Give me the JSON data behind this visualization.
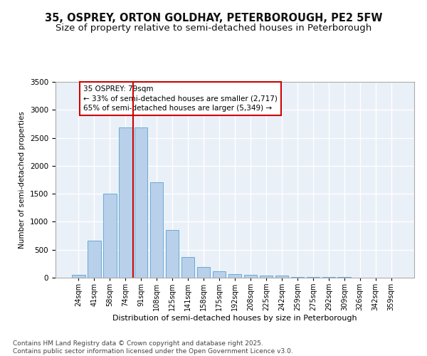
{
  "title1": "35, OSPREY, ORTON GOLDHAY, PETERBOROUGH, PE2 5FW",
  "title2": "Size of property relative to semi-detached houses in Peterborough",
  "xlabel": "Distribution of semi-detached houses by size in Peterborough",
  "ylabel": "Number of semi-detached properties",
  "categories": [
    "24sqm",
    "41sqm",
    "58sqm",
    "74sqm",
    "91sqm",
    "108sqm",
    "125sqm",
    "141sqm",
    "158sqm",
    "175sqm",
    "192sqm",
    "208sqm",
    "225sqm",
    "242sqm",
    "259sqm",
    "275sqm",
    "292sqm",
    "309sqm",
    "326sqm",
    "342sqm",
    "359sqm"
  ],
  "values": [
    55,
    660,
    1500,
    2680,
    2680,
    1700,
    850,
    370,
    185,
    120,
    65,
    50,
    35,
    35,
    10,
    10,
    10,
    10,
    5,
    5,
    5
  ],
  "bar_color": "#b8d0ea",
  "bar_edge_color": "#6aaad4",
  "background_color": "#eaf0f8",
  "grid_color": "#ffffff",
  "annotation_text": "35 OSPREY: 79sqm\n← 33% of semi-detached houses are smaller (2,717)\n65% of semi-detached houses are larger (5,349) →",
  "vline_color": "#cc0000",
  "box_edge_color": "#cc0000",
  "annotation_fontsize": 7.5,
  "ylim": [
    0,
    3500
  ],
  "yticks": [
    0,
    500,
    1000,
    1500,
    2000,
    2500,
    3000,
    3500
  ],
  "footer": "Contains HM Land Registry data © Crown copyright and database right 2025.\nContains public sector information licensed under the Open Government Licence v3.0.",
  "title_fontsize": 10.5,
  "subtitle_fontsize": 9.5,
  "footer_fontsize": 6.5
}
